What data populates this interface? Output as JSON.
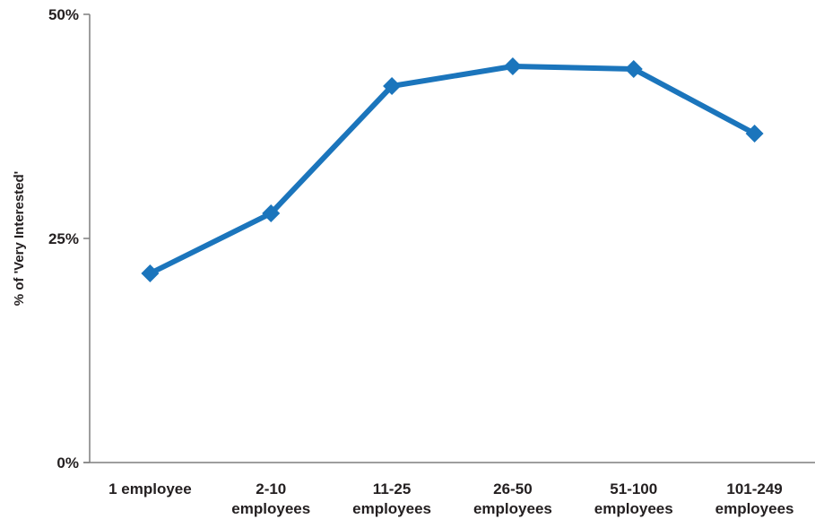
{
  "chart_data": {
    "type": "line",
    "title": "",
    "xlabel": "",
    "ylabel": "% of 'Very Interested'",
    "categories": [
      [
        "1 employee"
      ],
      [
        "2-10",
        "employees"
      ],
      [
        "11-25",
        "employees"
      ],
      [
        "26-50",
        "employees"
      ],
      [
        "51-100",
        "employees"
      ],
      [
        "101-249",
        "employees"
      ]
    ],
    "series": [
      {
        "values": [
          21.1,
          27.8,
          42.0,
          44.2,
          43.9,
          36.7
        ]
      }
    ],
    "ylim": [
      0,
      50
    ],
    "yticks": [
      0,
      25,
      50
    ],
    "ytick_labels": [
      "0%",
      "25%",
      "50%"
    ],
    "grid": false,
    "legend": "none",
    "colors": {
      "line": "#1b75bc",
      "axis": "#7f7f7f",
      "text": "#231f20"
    },
    "marker": "diamond"
  }
}
